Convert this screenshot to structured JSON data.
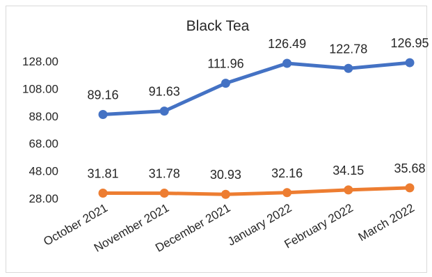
{
  "chart_data": {
    "type": "line",
    "title": "Black Tea",
    "categories": [
      "October 2021",
      "November 2021",
      "December 2021",
      "January 2022",
      "February 2022",
      "March 2022"
    ],
    "series": [
      {
        "values": [
          89.16,
          91.63,
          111.96,
          126.49,
          122.78,
          126.95
        ],
        "color": "#4472C4"
      },
      {
        "values": [
          31.81,
          31.78,
          30.93,
          32.16,
          34.15,
          35.68
        ],
        "color": "#ED7D31"
      }
    ],
    "yticks": [
      "28.00",
      "48.00",
      "68.00",
      "88.00",
      "108.00",
      "128.00"
    ],
    "ylim": [
      28,
      128
    ],
    "grid": false,
    "data_labels": true
  }
}
